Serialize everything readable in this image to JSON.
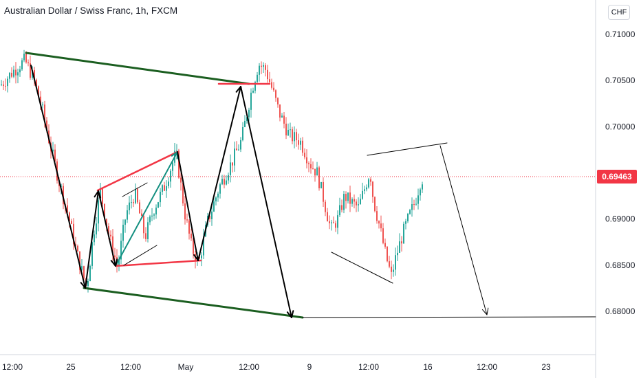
{
  "header": {
    "title": "Australian Dollar / Swiss Franc, 1h, FXCM"
  },
  "currency_button": "CHF",
  "last_price_label": "0.69463",
  "colors": {
    "up_candle": "#26a69a",
    "down_candle": "#ef5350",
    "trend_green": "#1b5e20",
    "red_line": "#f23645",
    "teal_line": "#138f80",
    "black": "#000000",
    "price_tag": "#f23645"
  },
  "chart_data": {
    "type": "candlestick",
    "symbol": "Australian Dollar / Swiss Franc",
    "interval": "1h",
    "source": "FXCM",
    "y_axis": {
      "label": "CHF",
      "ticks": [
        "0.71000",
        "0.70500",
        "0.70000",
        "0.69500",
        "0.69000",
        "0.68500",
        "0.68000"
      ],
      "range": [
        0.6755,
        0.7125
      ]
    },
    "x_axis": {
      "ticks": [
        "12:00",
        "25",
        "12:00",
        "May",
        "12:00",
        "9",
        "12:00",
        "16",
        "12:00",
        "23"
      ]
    },
    "last_price": 0.69463,
    "price_path": [
      [
        0,
        0.7045
      ],
      [
        18,
        0.706
      ],
      [
        35,
        0.7072
      ],
      [
        48,
        0.7052
      ],
      [
        60,
        0.702
      ],
      [
        72,
        0.698
      ],
      [
        85,
        0.694
      ],
      [
        98,
        0.6905
      ],
      [
        110,
        0.6865
      ],
      [
        125,
        0.6825
      ],
      [
        135,
        0.6885
      ],
      [
        145,
        0.693
      ],
      [
        158,
        0.688
      ],
      [
        170,
        0.6848
      ],
      [
        182,
        0.6905
      ],
      [
        195,
        0.6928
      ],
      [
        210,
        0.688
      ],
      [
        222,
        0.691
      ],
      [
        238,
        0.6935
      ],
      [
        255,
        0.6972
      ],
      [
        268,
        0.6905
      ],
      [
        278,
        0.6868
      ],
      [
        288,
        0.6852
      ],
      [
        300,
        0.6895
      ],
      [
        318,
        0.6935
      ],
      [
        335,
        0.696
      ],
      [
        350,
        0.6985
      ],
      [
        365,
        0.704
      ],
      [
        375,
        0.7068
      ],
      [
        385,
        0.7062
      ],
      [
        395,
        0.704
      ],
      [
        405,
        0.7015
      ],
      [
        420,
        0.699
      ],
      [
        435,
        0.6985
      ],
      [
        450,
        0.696
      ],
      [
        460,
        0.695
      ],
      [
        470,
        0.692
      ],
      [
        480,
        0.6888
      ],
      [
        490,
        0.69
      ],
      [
        500,
        0.6925
      ],
      [
        510,
        0.6918
      ],
      [
        520,
        0.6912
      ],
      [
        530,
        0.6935
      ],
      [
        537,
        0.6952
      ],
      [
        542,
        0.692
      ],
      [
        550,
        0.6895
      ],
      [
        560,
        0.686
      ],
      [
        568,
        0.6838
      ],
      [
        575,
        0.686
      ],
      [
        585,
        0.6885
      ],
      [
        595,
        0.6905
      ],
      [
        603,
        0.692
      ],
      [
        610,
        0.694
      ],
      [
        615,
        0.6946
      ]
    ],
    "annotations": [
      {
        "type": "trendline",
        "color": "#1b5e20",
        "points": [
          [
            0.708,
            38
          ],
          [
            0.7047,
            362
          ]
        ],
        "note": "upper channel line"
      },
      {
        "type": "trendline",
        "color": "#1b5e20",
        "points": [
          [
            0.6825,
            122
          ],
          [
            0.6793,
            440
          ]
        ],
        "note": "lower channel line"
      },
      {
        "type": "horizontal",
        "color": "#000000",
        "price": 0.6793
      },
      {
        "type": "projection",
        "color": "#000000",
        "note": "arrow to 0.6793"
      }
    ]
  }
}
